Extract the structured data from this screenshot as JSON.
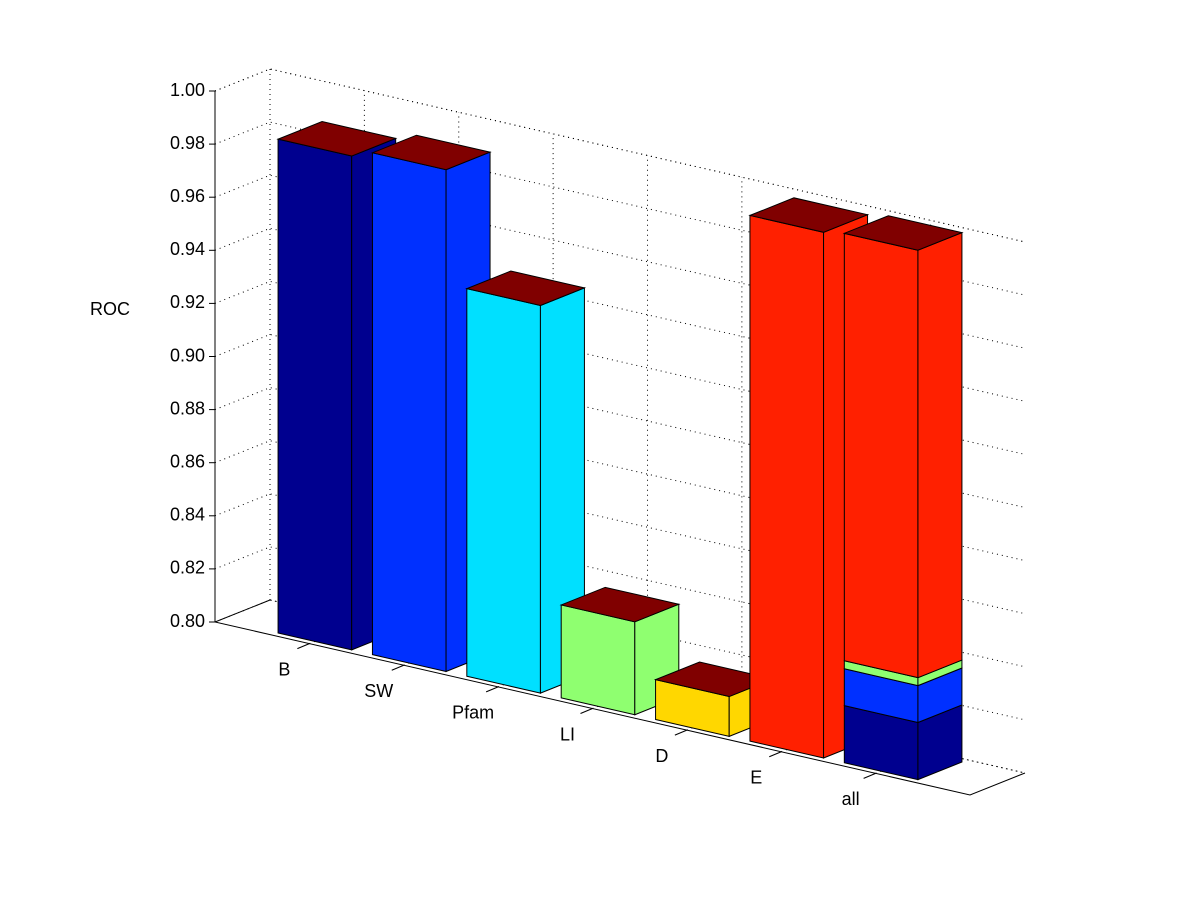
{
  "chart_data": {
    "type": "bar3",
    "y_label": "ROC",
    "categories": [
      "B",
      "SW",
      "Pfam",
      "LI",
      "D",
      "E",
      "all"
    ],
    "values": [
      0.986,
      0.989,
      0.946,
      0.835,
      0.815,
      0.998,
      null
    ],
    "colors": [
      "#00008f",
      "#0030ff",
      "#00e0ff",
      "#8fff70",
      "#ffd700",
      "#ff2000",
      null
    ],
    "stack_values": [
      0.8215,
      0.0139,
      0.003,
      0.161
    ],
    "stack_colors": [
      "#00008f",
      "#0030ff",
      "#8fff70",
      "#ff2000"
    ],
    "top_color": "#800000",
    "ylim": [
      0.8,
      1.0
    ],
    "yticks": [
      {
        "value": 0.8,
        "label": "0.80"
      },
      {
        "value": 0.82,
        "label": "0.82"
      },
      {
        "value": 0.84,
        "label": "0.84"
      },
      {
        "value": 0.86,
        "label": "0.86"
      },
      {
        "value": 0.88,
        "label": "0.88"
      },
      {
        "value": 0.9,
        "label": "0.90"
      },
      {
        "value": 0.92,
        "label": "0.92"
      },
      {
        "value": 0.94,
        "label": "0.94"
      },
      {
        "value": 0.96,
        "label": "0.96"
      },
      {
        "value": 0.98,
        "label": "0.98"
      },
      {
        "value": 1.0,
        "label": "1.00"
      }
    ],
    "grid": true
  }
}
